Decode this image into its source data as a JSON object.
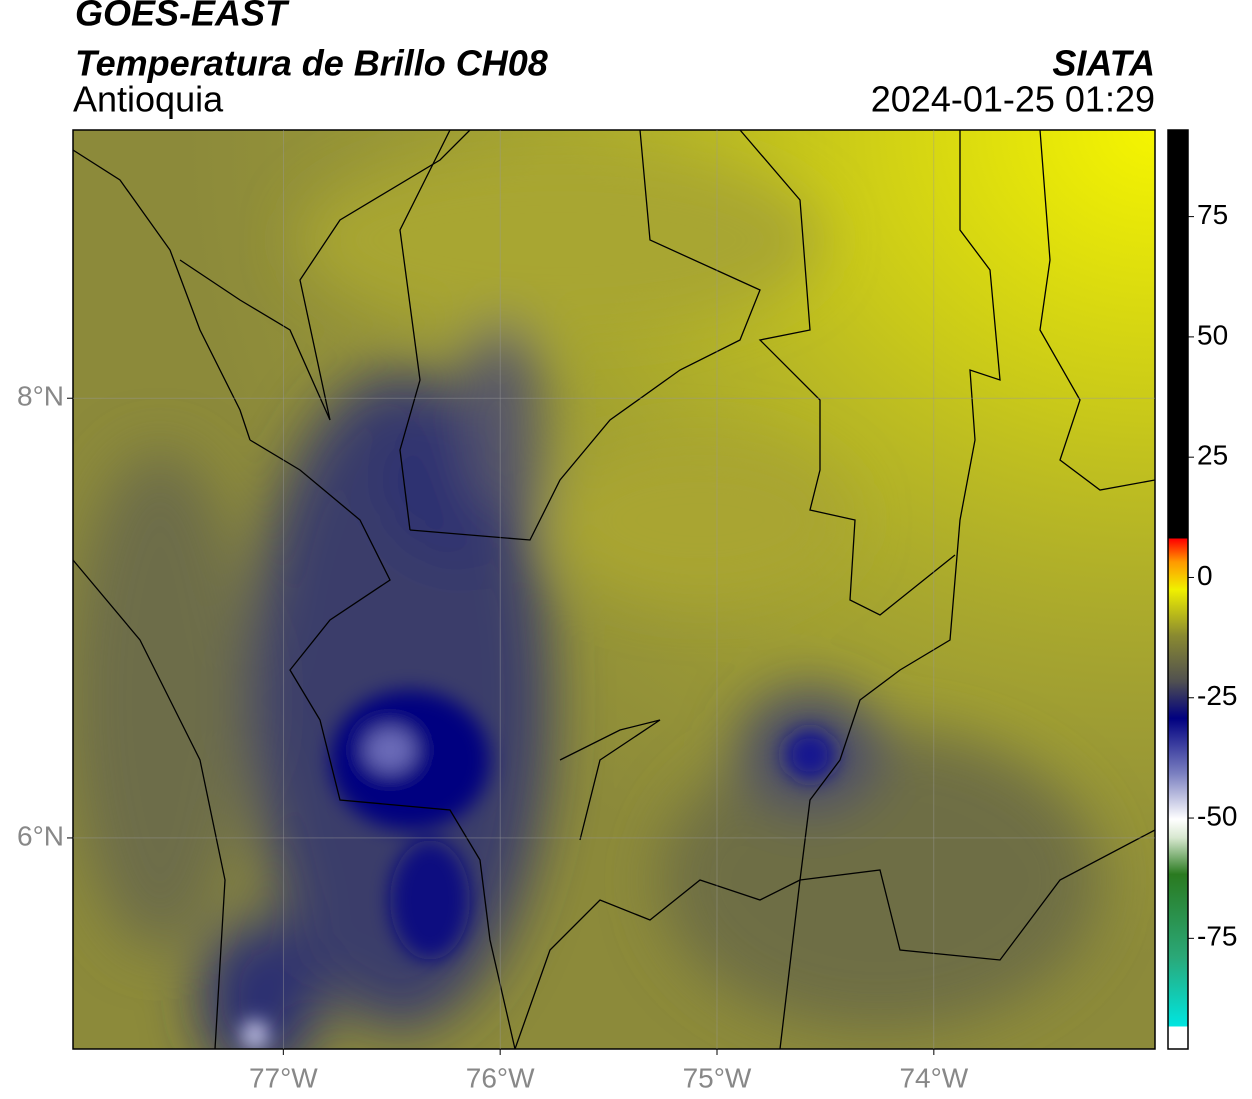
{
  "chart_data": {
    "type": "map",
    "title": "GOES-EAST",
    "subtitle": "Temperatura de Brillo CH08",
    "region": "Antioquia",
    "source": "SIATA",
    "datetime": "2024-01-25 01:29",
    "xlim": [
      -77.97,
      -72.98
    ],
    "ylim": [
      5.04,
      9.22
    ],
    "xticks": [
      {
        "value": -77,
        "label": "77°W"
      },
      {
        "value": -76,
        "label": "76°W"
      },
      {
        "value": -75,
        "label": "75°W"
      },
      {
        "value": -74,
        "label": "74°W"
      }
    ],
    "yticks": [
      {
        "value": 6,
        "label": "6°N"
      },
      {
        "value": 8,
        "label": "8°N"
      }
    ],
    "grid": true,
    "colorbar": {
      "lim": [
        -98,
        93
      ],
      "ticks": [
        75,
        50,
        25,
        0,
        -25,
        -50,
        -75
      ]
    }
  }
}
